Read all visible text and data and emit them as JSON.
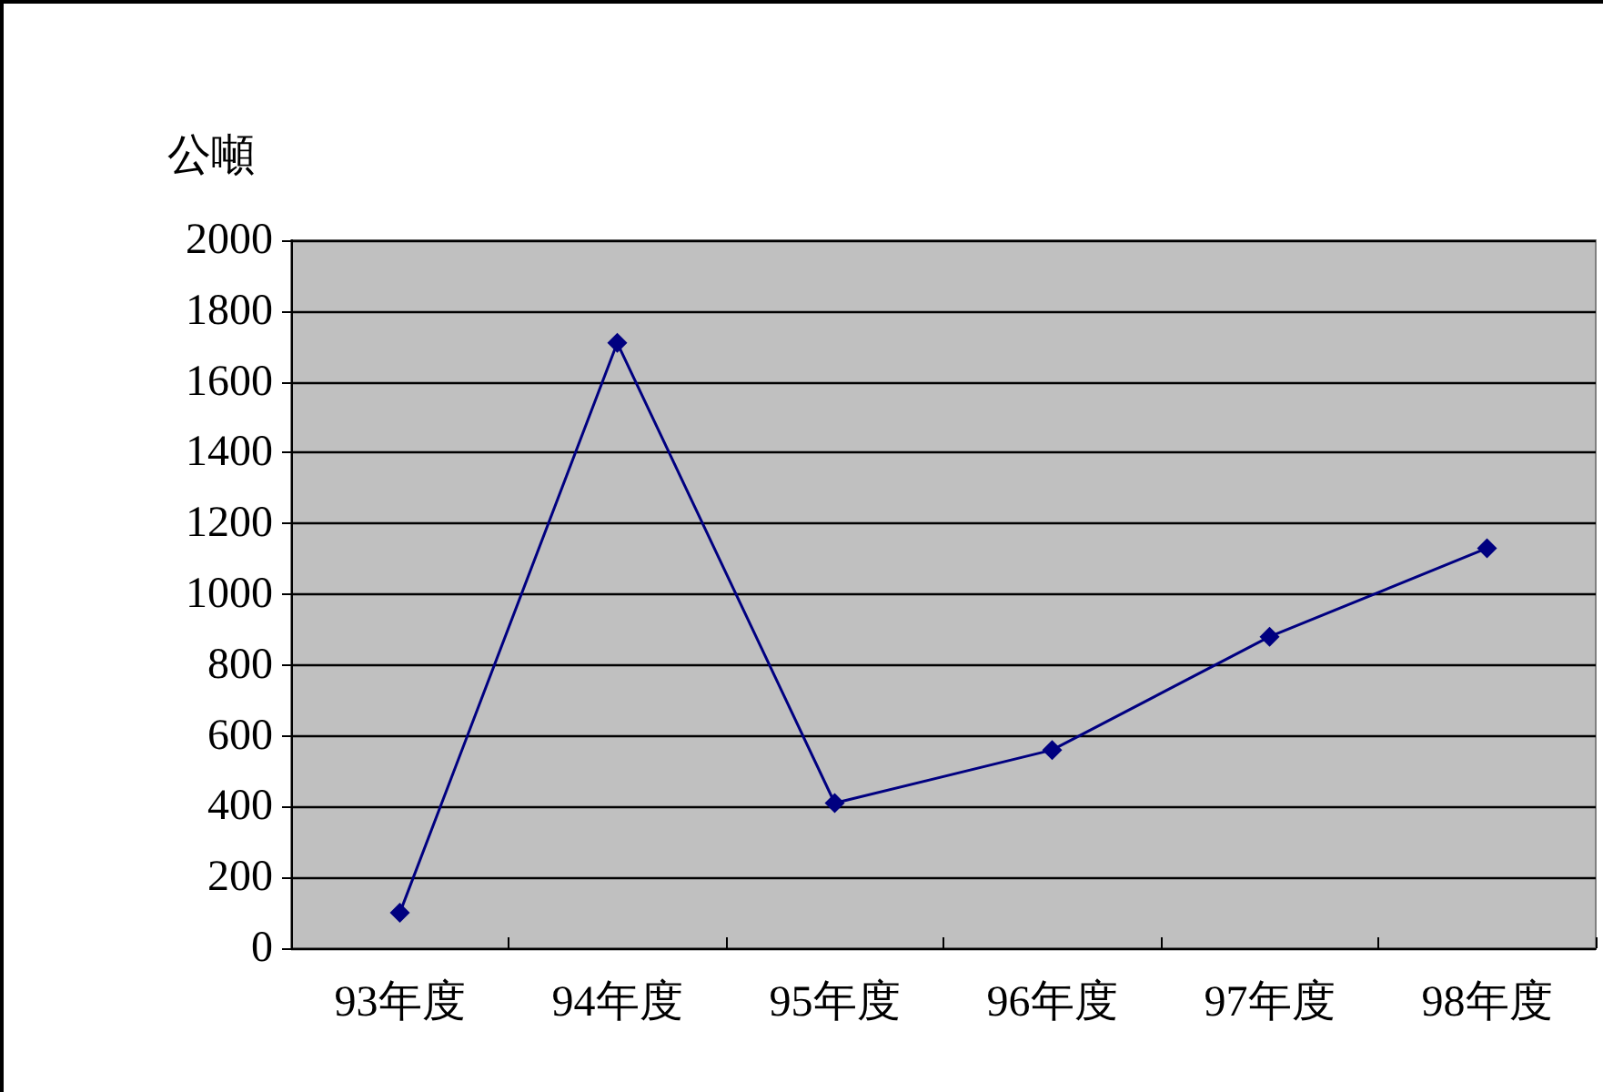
{
  "chart_data": {
    "type": "line",
    "ylabel": "公噸",
    "categories": [
      "93年度",
      "94年度",
      "95年度",
      "96年度",
      "97年度",
      "98年度"
    ],
    "series": [
      {
        "color": "#000080",
        "values": [
          100,
          1710,
          410,
          560,
          880,
          1130
        ]
      }
    ],
    "ylim": [
      0,
      2000
    ],
    "yticks": [
      0,
      200,
      400,
      600,
      800,
      1000,
      1200,
      1400,
      1600,
      1800,
      2000
    ],
    "grid": "y",
    "marker": "diamond",
    "line_style": "solid"
  }
}
